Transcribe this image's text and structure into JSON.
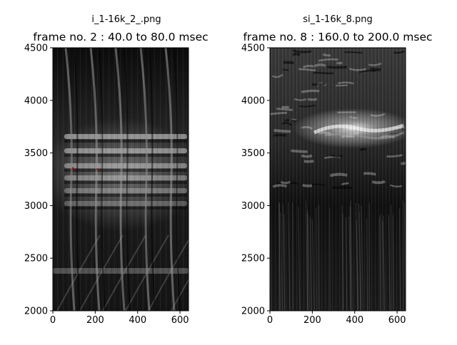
{
  "chart_data": [
    {
      "type": "heatmap",
      "filename": "i_1-16k_2_.png",
      "title": "frame no. 2 : 40.0 to 80.0 msec",
      "xlim": [
        0,
        640
      ],
      "ylim": [
        2000,
        4500
      ],
      "xticks": [
        0,
        200,
        400,
        600
      ],
      "yticks": [
        2000,
        2500,
        3000,
        3500,
        4000,
        4500
      ],
      "xtick_labels": [
        "0",
        "200",
        "400",
        "600"
      ],
      "ytick_labels": [
        "2000",
        "2500",
        "3000",
        "3500",
        "4000",
        "4500"
      ],
      "colormap": "grayscale",
      "markers": [
        {
          "x": 95,
          "y": 3355,
          "color": "#cc0000"
        },
        {
          "x": 210,
          "y": 3345,
          "color": "#cc0000"
        }
      ]
    },
    {
      "type": "heatmap",
      "filename": "si_1-16k_8.png",
      "title": "frame no. 8 : 160.0 to 200.0 msec",
      "xlim": [
        0,
        640
      ],
      "ylim": [
        2000,
        4500
      ],
      "xticks": [
        0,
        200,
        400,
        600
      ],
      "yticks": [
        2000,
        2500,
        3000,
        3500,
        4000,
        4500
      ],
      "xtick_labels": [
        "0",
        "200",
        "400",
        "600"
      ],
      "ytick_labels": [
        "2000",
        "2500",
        "3000",
        "3500",
        "4000",
        "4500"
      ],
      "colormap": "grayscale",
      "markers": []
    }
  ]
}
